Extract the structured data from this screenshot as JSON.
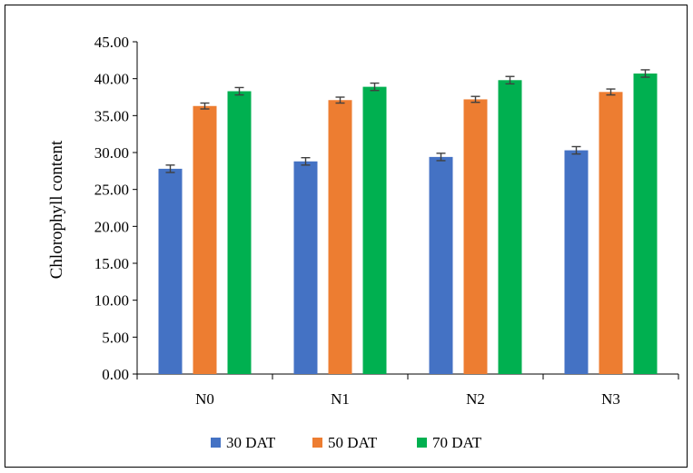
{
  "chart_data": {
    "type": "bar",
    "title": "",
    "xlabel": "",
    "ylabel": "Chlorophyll content",
    "ylim": [
      0,
      45
    ],
    "yticks": [
      "0.00",
      "5.00",
      "10.00",
      "15.00",
      "20.00",
      "25.00",
      "30.00",
      "35.00",
      "40.00",
      "45.00"
    ],
    "categories": [
      "N0",
      "N1",
      "N2",
      "N3"
    ],
    "series": [
      {
        "name": "30 DAT",
        "color": "#4472C4",
        "values": [
          27.8,
          28.8,
          29.4,
          30.3
        ],
        "errors": [
          0.5,
          0.5,
          0.5,
          0.5
        ]
      },
      {
        "name": "50 DAT",
        "color": "#ED7D31",
        "values": [
          36.3,
          37.1,
          37.2,
          38.2
        ],
        "errors": [
          0.4,
          0.4,
          0.4,
          0.4
        ]
      },
      {
        "name": "70 DAT",
        "color": "#00B050",
        "values": [
          38.3,
          38.9,
          39.8,
          40.7
        ],
        "errors": [
          0.5,
          0.5,
          0.5,
          0.5
        ]
      }
    ],
    "grid": false,
    "legend_position": "bottom"
  }
}
